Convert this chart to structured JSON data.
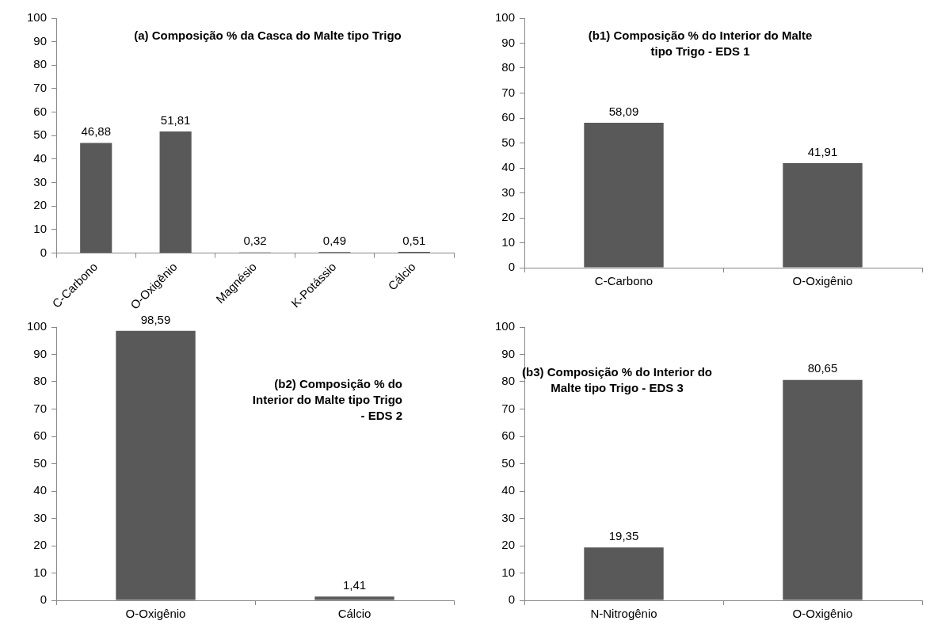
{
  "chart_data": [
    {
      "type": "bar",
      "title": "(a) Composição % da Casca do Malte tipo Trigo",
      "categories": [
        "C-Carbono",
        "O-Oxigênio",
        "Magnésio",
        "K-Potássio",
        "Cálcio"
      ],
      "values": [
        46.88,
        51.81,
        0.32,
        0.49,
        0.51
      ],
      "value_labels": [
        "46,88",
        "51,81",
        "0,32",
        "0,49",
        "0,51"
      ],
      "color": "#595959",
      "ylim": [
        0,
        100
      ],
      "yticks": [
        0,
        10,
        20,
        30,
        40,
        50,
        60,
        70,
        80,
        90,
        100
      ],
      "grid": false
    },
    {
      "type": "bar",
      "title": "(b1) Composição % do Interior do Malte tipo Trigo - EDS 1",
      "categories": [
        "C-Carbono",
        "O-Oxigênio"
      ],
      "values": [
        58.09,
        41.91
      ],
      "value_labels": [
        "58,09",
        "41,91"
      ],
      "color": "#595959",
      "ylim": [
        0,
        100
      ],
      "yticks": [
        0,
        10,
        20,
        30,
        40,
        50,
        60,
        70,
        80,
        90,
        100
      ],
      "grid": false
    },
    {
      "type": "bar",
      "title": "(b2) Composição % do Interior do Malte tipo Trigo - EDS 2",
      "categories": [
        "O-Oxigênio",
        "Cálcio"
      ],
      "values": [
        98.59,
        1.41
      ],
      "value_labels": [
        "98,59",
        "1,41"
      ],
      "color": "#595959",
      "ylim": [
        0,
        100
      ],
      "yticks": [
        0,
        10,
        20,
        30,
        40,
        50,
        60,
        70,
        80,
        90,
        100
      ],
      "grid": false
    },
    {
      "type": "bar",
      "title": "(b3) Composição % do Interior do Malte tipo Trigo - EDS 3",
      "categories": [
        "N-Nitrogênio",
        "O-Oxigênio"
      ],
      "values": [
        19.35,
        80.65
      ],
      "value_labels": [
        "19,35",
        "80,65"
      ],
      "color": "#595959",
      "ylim": [
        0,
        100
      ],
      "yticks": [
        0,
        10,
        20,
        30,
        40,
        50,
        60,
        70,
        80,
        90,
        100
      ],
      "grid": false
    }
  ]
}
